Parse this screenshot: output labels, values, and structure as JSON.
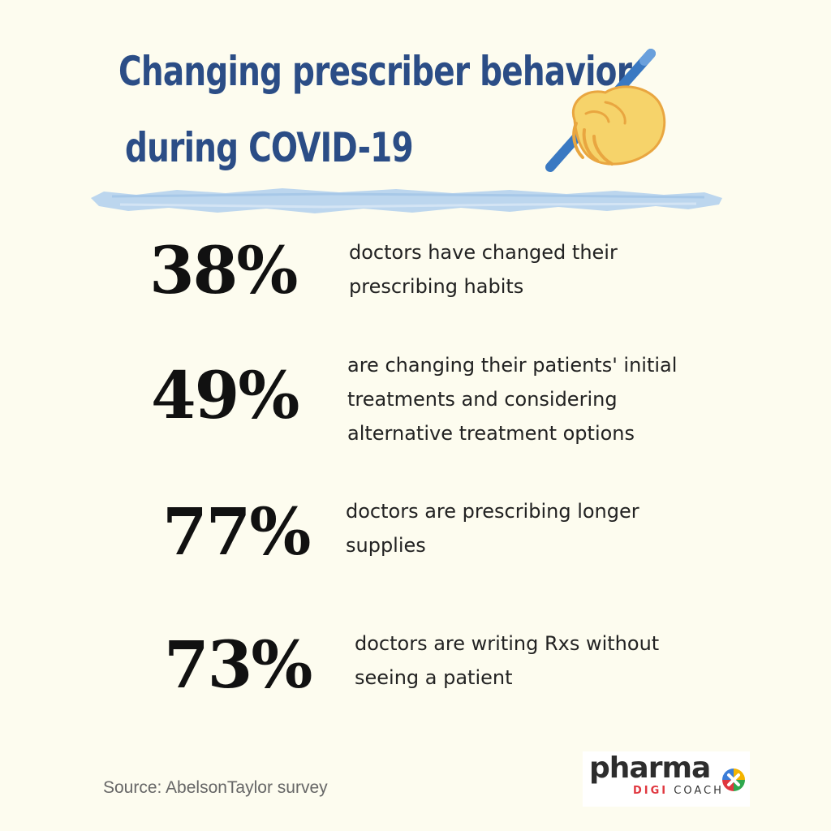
{
  "title": {
    "line1": "Changing prescriber behavior",
    "line2": "during COVID-19"
  },
  "stats": [
    {
      "value": "38%",
      "text": "doctors have changed their\nprescribing habits"
    },
    {
      "value": "49%",
      "text": "are changing their patients' initial\ntreatments and considering\nalternative treatment options"
    },
    {
      "value": "77%",
      "text": "doctors are prescribing longer\nsupplies"
    },
    {
      "value": "73%",
      "text": "doctors are writing Rxs without\nseeing a patient"
    }
  ],
  "source": "Source: AbelsonTaylor survey",
  "logo": {
    "main": "pharma",
    "digi": "DIGI",
    "coach": "COACH"
  },
  "icons": {
    "title_illustration": "writing-hand-icon",
    "logo_mark": "colored-circle-x-icon"
  },
  "colors": {
    "background": "#fdfcef",
    "title": "#2b4d86",
    "underline": "#bcd6ee",
    "stat_number": "#111111",
    "body_text": "#222222",
    "source_text": "#666666",
    "logo_digi": "#e0373f"
  }
}
